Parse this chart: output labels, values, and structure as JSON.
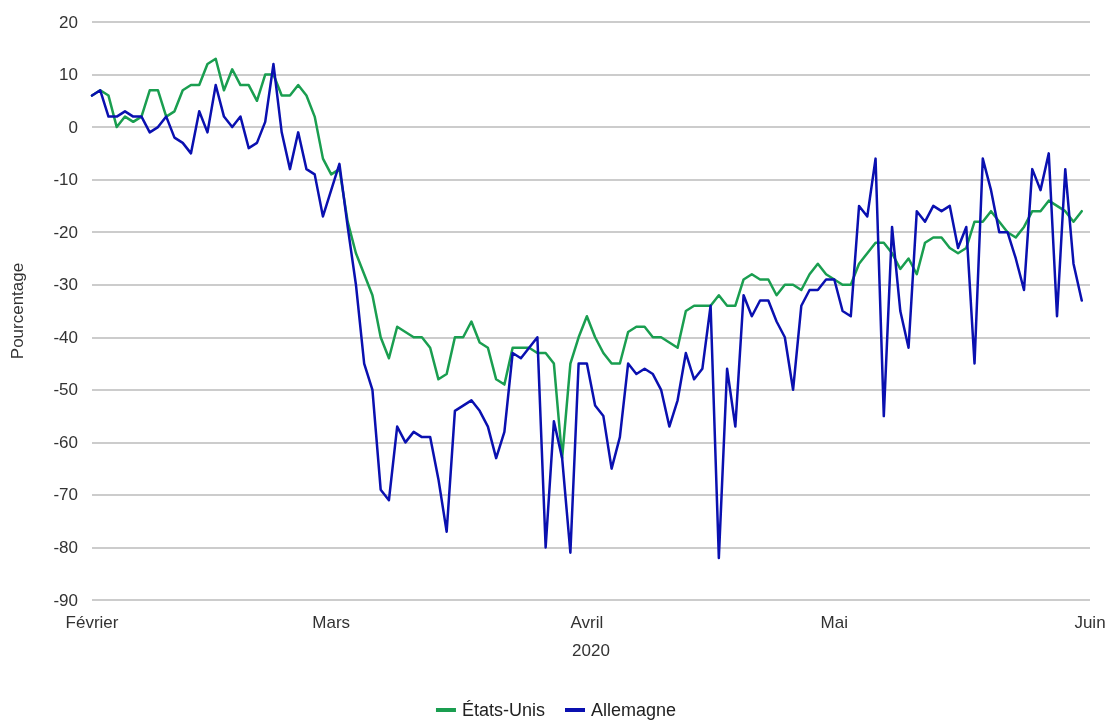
{
  "chart_data": {
    "type": "line",
    "xlabel": "2020",
    "ylabel": "Pourcentage",
    "categories": [
      "Février",
      null,
      null,
      null,
      null,
      null,
      null,
      null,
      null,
      null,
      null,
      null,
      null,
      null,
      null,
      null,
      null,
      null,
      null,
      null,
      null,
      null,
      null,
      null,
      null,
      null,
      null,
      null,
      null,
      "Mars",
      null,
      null,
      null,
      null,
      null,
      null,
      null,
      null,
      null,
      null,
      null,
      null,
      null,
      null,
      null,
      null,
      null,
      null,
      null,
      null,
      null,
      null,
      null,
      null,
      null,
      null,
      null,
      null,
      null,
      null,
      "Avril",
      null,
      null,
      null,
      null,
      null,
      null,
      null,
      null,
      null,
      null,
      null,
      null,
      null,
      null,
      null,
      null,
      null,
      null,
      null,
      null,
      null,
      null,
      null,
      null,
      null,
      null,
      null,
      null,
      null,
      "Mai",
      null,
      null,
      null,
      null,
      null,
      null,
      null,
      null,
      null,
      null,
      null,
      null,
      null,
      null,
      null,
      null,
      null,
      null,
      null,
      null,
      null,
      null,
      null,
      null,
      null,
      null,
      null,
      null,
      null,
      null,
      "Juin"
    ],
    "series": [
      {
        "name": "États-Unis",
        "color": "#1a9e50",
        "values": [
          6,
          7,
          6,
          0,
          2,
          1,
          2,
          7,
          7,
          2,
          3,
          7,
          8,
          8,
          12,
          13,
          7,
          11,
          8,
          8,
          5,
          10,
          10,
          6,
          6,
          8,
          6,
          2,
          -6,
          -9,
          -8,
          -18,
          -24,
          -28,
          -32,
          -40,
          -44,
          -38,
          -39,
          -40,
          -40,
          -42,
          -48,
          -47,
          -40,
          -40,
          -37,
          -41,
          -42,
          -48,
          -49,
          -42,
          -42,
          -42,
          -43,
          -43,
          -45,
          -63,
          -45,
          -40,
          -36,
          -40,
          -43,
          -45,
          -45,
          -39,
          -38,
          -38,
          -40,
          -40,
          -41,
          -42,
          -35,
          -34,
          -34,
          -34,
          -32,
          -34,
          -34,
          -29,
          -28,
          -29,
          -29,
          -32,
          -30,
          -30,
          -31,
          -28,
          -26,
          -28,
          -29,
          -30,
          -30,
          -26,
          -24,
          -22,
          -22,
          -24,
          -27,
          -25,
          -28,
          -22,
          -21,
          -21,
          -23,
          -24,
          -23,
          -18,
          -18,
          -16,
          -18,
          -20,
          -21,
          -19,
          -16,
          -16,
          -14,
          -15,
          -16,
          -18,
          -16,
          null
        ]
      },
      {
        "name": "Allemagne",
        "color": "#0a10b0",
        "values": [
          6,
          7,
          2,
          2,
          3,
          2,
          2,
          -1,
          0,
          2,
          -2,
          -3,
          -5,
          3,
          -1,
          8,
          2,
          0,
          2,
          -4,
          -3,
          1,
          12,
          -1,
          -8,
          -1,
          -8,
          -9,
          -17,
          -12,
          -7,
          -19,
          -30,
          -45,
          -50,
          -69,
          -71,
          -57,
          -60,
          -58,
          -59,
          -59,
          -67,
          -77,
          -54,
          -53,
          -52,
          -54,
          -57,
          -63,
          -58,
          -43,
          -44,
          -42,
          -40,
          -80,
          -56,
          -63,
          -81,
          -45,
          -45,
          -53,
          -55,
          -65,
          -59,
          -45,
          -47,
          -46,
          -47,
          -50,
          -57,
          -52,
          -43,
          -48,
          -46,
          -34,
          -82,
          -46,
          -57,
          -32,
          -36,
          -33,
          -33,
          -37,
          -40,
          -50,
          -34,
          -31,
          -31,
          -29,
          -29,
          -35,
          -36,
          -15,
          -17,
          -6,
          -55,
          -19,
          -35,
          -42,
          -16,
          -18,
          -15,
          -16,
          -15,
          -23,
          -19,
          -45,
          -6,
          -12,
          -20,
          -20,
          -25,
          -31,
          -8,
          -12,
          -5,
          -36,
          -8,
          -26,
          -33,
          null
        ]
      }
    ],
    "ylim": [
      -90,
      20
    ],
    "yticks": [
      -90,
      -80,
      -70,
      -60,
      -50,
      -40,
      -30,
      -20,
      -10,
      0,
      10,
      20
    ],
    "grid": "y",
    "legend": "bottom",
    "marker": "none",
    "line_style": "solid"
  }
}
